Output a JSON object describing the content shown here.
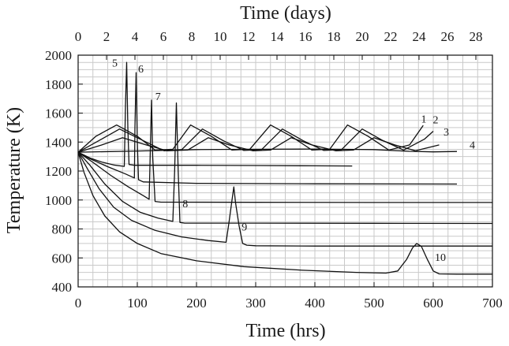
{
  "chart_data": {
    "type": "line",
    "title": "",
    "xlabel": "Time (hrs)",
    "x2label": "Time (days)",
    "ylabel": "Temperature (K)",
    "xlim": [
      0,
      700
    ],
    "ylim": [
      400,
      2000
    ],
    "x2lim": [
      0,
      29.1667
    ],
    "xticks": [
      0,
      100,
      200,
      300,
      400,
      500,
      600,
      700
    ],
    "yticks": [
      400,
      600,
      800,
      1000,
      1200,
      1400,
      1600,
      1800,
      2000
    ],
    "x2ticks": [
      0,
      2,
      4,
      6,
      8,
      10,
      12,
      14,
      16,
      18,
      20,
      22,
      24,
      26,
      28
    ],
    "grid": true,
    "legend": "none",
    "colors": {
      "line": "#111111",
      "grid": "#c9c9c9",
      "axis": "#111111"
    },
    "series": [
      {
        "name": "1",
        "points": [
          [
            0,
            1330
          ],
          [
            30,
            1440
          ],
          [
            65,
            1518
          ],
          [
            100,
            1440
          ],
          [
            130,
            1345
          ],
          [
            160,
            1350
          ],
          [
            190,
            1518
          ],
          [
            225,
            1440
          ],
          [
            260,
            1345
          ],
          [
            290,
            1350
          ],
          [
            325,
            1518
          ],
          [
            360,
            1440
          ],
          [
            395,
            1345
          ],
          [
            425,
            1350
          ],
          [
            455,
            1518
          ],
          [
            490,
            1440
          ],
          [
            525,
            1345
          ],
          [
            560,
            1380
          ],
          [
            583,
            1515
          ]
        ]
      },
      {
        "name": "2",
        "points": [
          [
            0,
            1330
          ],
          [
            35,
            1410
          ],
          [
            70,
            1490
          ],
          [
            110,
            1410
          ],
          [
            145,
            1340
          ],
          [
            175,
            1348
          ],
          [
            210,
            1490
          ],
          [
            245,
            1410
          ],
          [
            280,
            1342
          ],
          [
            310,
            1348
          ],
          [
            345,
            1490
          ],
          [
            380,
            1410
          ],
          [
            415,
            1342
          ],
          [
            445,
            1348
          ],
          [
            480,
            1490
          ],
          [
            515,
            1410
          ],
          [
            550,
            1345
          ],
          [
            585,
            1420
          ],
          [
            600,
            1475
          ]
        ]
      },
      {
        "name": "3",
        "points": [
          [
            0,
            1330
          ],
          [
            40,
            1380
          ],
          [
            75,
            1430
          ],
          [
            115,
            1380
          ],
          [
            150,
            1340
          ],
          [
            185,
            1345
          ],
          [
            220,
            1430
          ],
          [
            255,
            1380
          ],
          [
            295,
            1340
          ],
          [
            325,
            1345
          ],
          [
            360,
            1430
          ],
          [
            395,
            1380
          ],
          [
            435,
            1340
          ],
          [
            465,
            1345
          ],
          [
            500,
            1430
          ],
          [
            535,
            1380
          ],
          [
            570,
            1340
          ],
          [
            610,
            1380
          ]
        ]
      },
      {
        "name": "4",
        "points": [
          [
            0,
            1330
          ],
          [
            100,
            1338
          ],
          [
            200,
            1348
          ],
          [
            300,
            1350
          ],
          [
            400,
            1352
          ],
          [
            500,
            1348
          ],
          [
            560,
            1336
          ],
          [
            600,
            1332
          ],
          [
            640,
            1335
          ]
        ]
      },
      {
        "name": "5",
        "points": [
          [
            0,
            1330
          ],
          [
            20,
            1290
          ],
          [
            40,
            1262
          ],
          [
            60,
            1242
          ],
          [
            78,
            1232
          ],
          [
            80,
            1650
          ],
          [
            82,
            1950
          ],
          [
            84,
            1500
          ],
          [
            86,
            1245
          ],
          [
            95,
            1240
          ],
          [
            200,
            1240
          ],
          [
            300,
            1238
          ],
          [
            400,
            1236
          ],
          [
            463,
            1235
          ]
        ]
      },
      {
        "name": "6",
        "points": [
          [
            0,
            1330
          ],
          [
            20,
            1285
          ],
          [
            50,
            1230
          ],
          [
            80,
            1180
          ],
          [
            95,
            1152
          ],
          [
            96,
            1500
          ],
          [
            98,
            1880
          ],
          [
            100,
            1400
          ],
          [
            102,
            1140
          ],
          [
            110,
            1125
          ],
          [
            200,
            1115
          ],
          [
            400,
            1112
          ],
          [
            640,
            1110
          ]
        ]
      },
      {
        "name": "7",
        "points": [
          [
            0,
            1330
          ],
          [
            25,
            1260
          ],
          [
            55,
            1170
          ],
          [
            85,
            1090
          ],
          [
            110,
            1030
          ],
          [
            120,
            1005
          ],
          [
            122,
            1350
          ],
          [
            124,
            1690
          ],
          [
            126,
            1300
          ],
          [
            130,
            990
          ],
          [
            140,
            985
          ],
          [
            300,
            984
          ],
          [
            500,
            983
          ],
          [
            700,
            983
          ]
        ]
      },
      {
        "name": "8",
        "points": [
          [
            0,
            1330
          ],
          [
            20,
            1240
          ],
          [
            45,
            1110
          ],
          [
            75,
            990
          ],
          [
            105,
            915
          ],
          [
            135,
            875
          ],
          [
            160,
            852
          ],
          [
            163,
            1200
          ],
          [
            166,
            1670
          ],
          [
            169,
            1200
          ],
          [
            172,
            845
          ],
          [
            180,
            840
          ],
          [
            300,
            840
          ],
          [
            500,
            839
          ],
          [
            700,
            838
          ]
        ]
      },
      {
        "name": "9",
        "points": [
          [
            0,
            1330
          ],
          [
            15,
            1220
          ],
          [
            35,
            1080
          ],
          [
            60,
            950
          ],
          [
            90,
            860
          ],
          [
            130,
            790
          ],
          [
            175,
            745
          ],
          [
            220,
            720
          ],
          [
            250,
            708
          ],
          [
            255,
            850
          ],
          [
            260,
            1000
          ],
          [
            263,
            1090
          ],
          [
            266,
            980
          ],
          [
            272,
            820
          ],
          [
            278,
            700
          ],
          [
            285,
            688
          ],
          [
            300,
            684
          ],
          [
            400,
            682
          ],
          [
            700,
            682
          ]
        ]
      },
      {
        "name": "10",
        "points": [
          [
            0,
            1330
          ],
          [
            10,
            1190
          ],
          [
            25,
            1030
          ],
          [
            45,
            890
          ],
          [
            70,
            780
          ],
          [
            100,
            700
          ],
          [
            140,
            630
          ],
          [
            200,
            580
          ],
          [
            280,
            540
          ],
          [
            380,
            515
          ],
          [
            470,
            500
          ],
          [
            520,
            495
          ],
          [
            540,
            510
          ],
          [
            555,
            590
          ],
          [
            565,
            670
          ],
          [
            572,
            700
          ],
          [
            580,
            680
          ],
          [
            590,
            590
          ],
          [
            600,
            510
          ],
          [
            610,
            490
          ],
          [
            640,
            488
          ],
          [
            700,
            488
          ]
        ]
      }
    ],
    "annotations": [
      {
        "text": "1",
        "x": 584,
        "y": 1535
      },
      {
        "text": "2",
        "x": 604,
        "y": 1530
      },
      {
        "text": "3",
        "x": 622,
        "y": 1445
      },
      {
        "text": "4",
        "x": 666,
        "y": 1355
      },
      {
        "text": "5",
        "x": 62,
        "y": 1920
      },
      {
        "text": "6",
        "x": 106,
        "y": 1880
      },
      {
        "text": "7",
        "x": 135,
        "y": 1690
      },
      {
        "text": "8",
        "x": 181,
        "y": 950
      },
      {
        "text": "9",
        "x": 281,
        "y": 790
      },
      {
        "text": "10",
        "x": 612,
        "y": 580
      }
    ]
  }
}
